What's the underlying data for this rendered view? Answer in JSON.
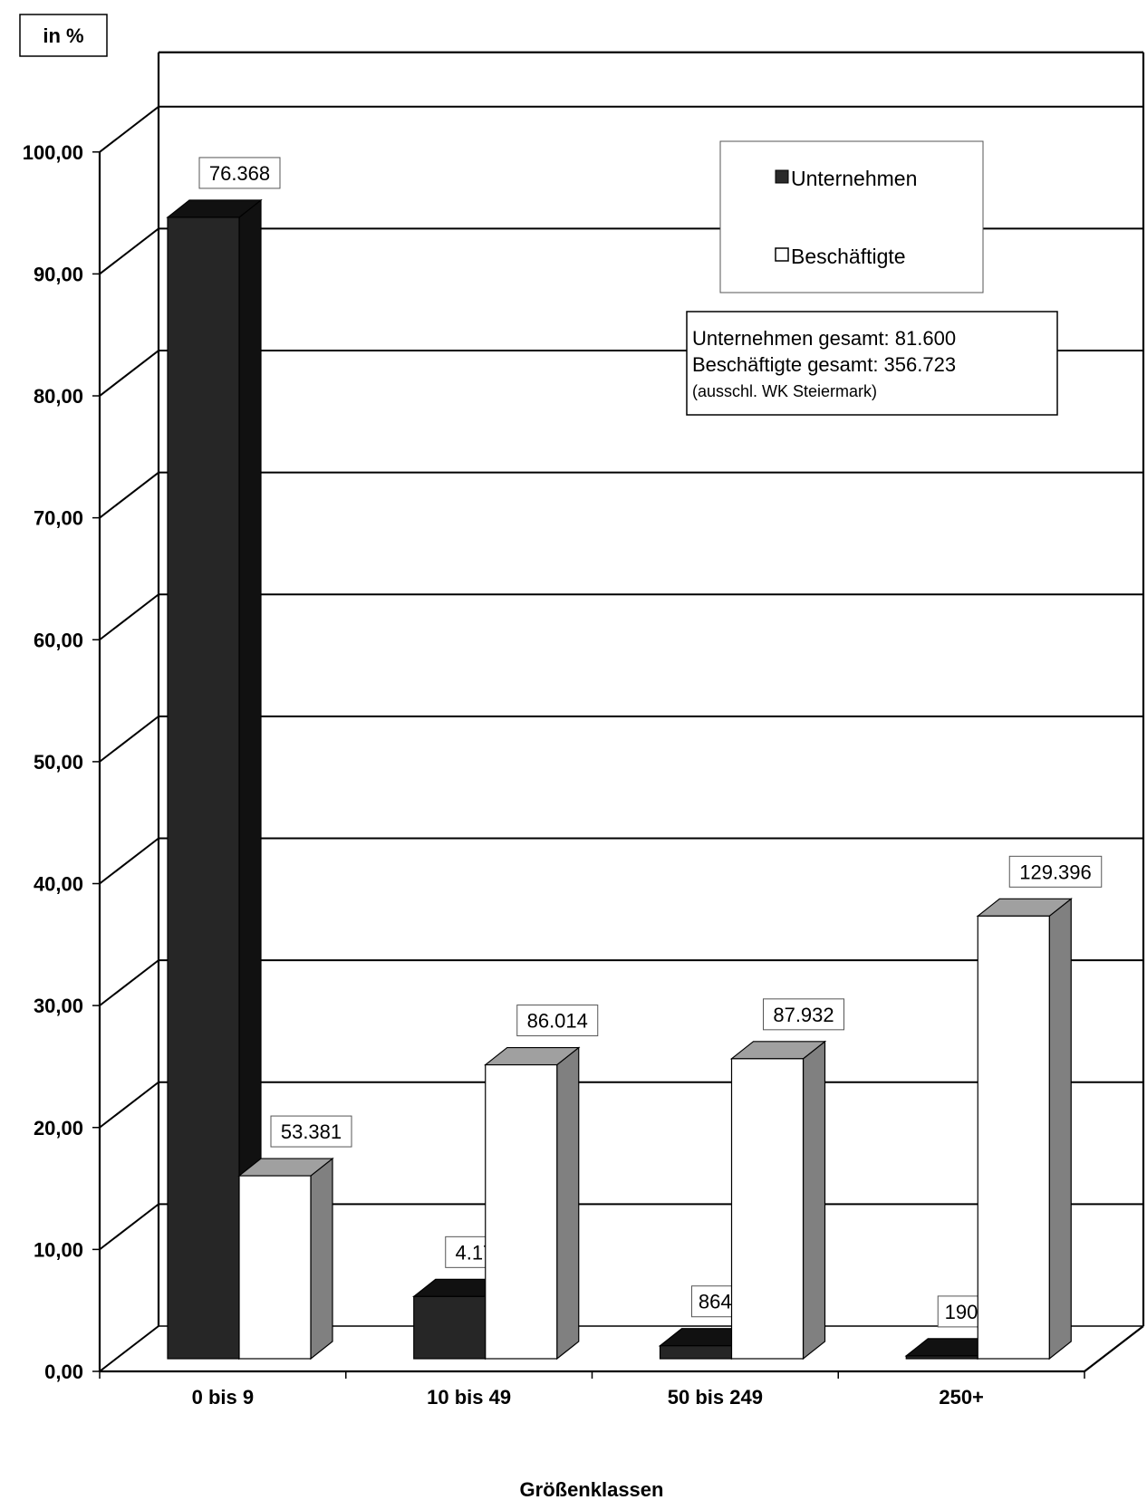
{
  "chart_data": {
    "type": "bar",
    "unit_label": "in %",
    "xlabel": "Größenklassen",
    "ylim": [
      0,
      100
    ],
    "y_ticks": [
      "0,00",
      "10,00",
      "20,00",
      "30,00",
      "40,00",
      "50,00",
      "60,00",
      "70,00",
      "80,00",
      "90,00",
      "100,00"
    ],
    "categories": [
      "0 bis 9",
      "10 bis 49",
      "50 bis 249",
      "250+"
    ],
    "series": [
      {
        "name": "Unternehmen",
        "color": "#2a2a2a",
        "values": [
          93.6,
          5.1,
          1.06,
          0.23
        ],
        "labels": [
          "76.368",
          "4.178",
          "864",
          "190"
        ]
      },
      {
        "name": "Beschäftigte",
        "color": "#ffffff",
        "values": [
          15.0,
          24.1,
          24.6,
          36.3
        ],
        "labels": [
          "53.381",
          "86.014",
          "87.932",
          "129.396"
        ]
      }
    ],
    "grid": true,
    "legend_position": "top-right",
    "annotation": {
      "line1": "Unternehmen gesamt: 81.600",
      "line2": "Beschäftigte gesamt: 356.723",
      "line3": "(ausschl. WK Steiermark)"
    }
  }
}
